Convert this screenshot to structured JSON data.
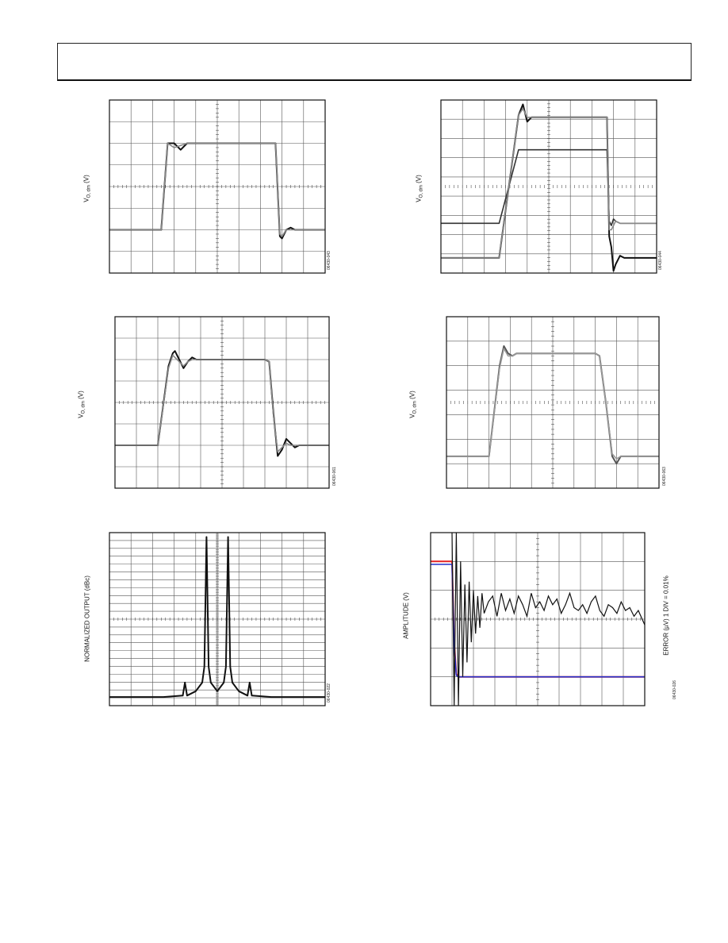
{
  "page": {
    "background": "#ffffff",
    "header_text": ""
  },
  "chart_data": [
    {
      "id": "c1",
      "type": "line",
      "ylabel": "V",
      "ylabel_sub": "O, dm",
      "ylabel_suffix": "(V)",
      "figure_code": "06430-043",
      "grid": true,
      "gridlines": {
        "x": 10,
        "y": 8
      },
      "x": [
        0,
        0.15,
        0.2,
        0.24,
        0.27,
        0.3,
        0.33,
        0.36,
        0.4,
        0.5,
        0.6,
        0.7,
        0.73,
        0.77,
        0.79,
        0.8,
        0.82,
        0.84,
        0.86,
        0.88,
        0.9,
        1.0
      ],
      "ylim": [
        -4,
        4
      ],
      "series": [
        {
          "color": "#111111",
          "values": [
            -2,
            -2,
            -2,
            -2,
            2,
            2,
            1.7,
            2,
            2,
            2,
            2,
            2,
            2,
            2,
            -2.3,
            -2.4,
            -2,
            -1.9,
            -2,
            -2,
            -2,
            -2
          ]
        },
        {
          "color": "#888888",
          "values": [
            -2,
            -2,
            -2,
            -2,
            2,
            1.8,
            1.9,
            2,
            2,
            2,
            2,
            2,
            2,
            2,
            -2.2,
            -2.3,
            -2,
            -2,
            -2,
            -2,
            -2,
            -2
          ]
        }
      ]
    },
    {
      "id": "c2",
      "type": "line",
      "ylabel": "V",
      "ylabel_sub": "O, dm",
      "ylabel_suffix": "(V)",
      "figure_code": "06430-044",
      "grid": true,
      "gridlines": {
        "x": 10,
        "y": 9
      },
      "x": [
        0,
        0.27,
        0.36,
        0.38,
        0.4,
        0.42,
        0.5,
        0.6,
        0.7,
        0.77,
        0.78,
        0.79,
        0.8,
        0.81,
        0.83,
        0.85,
        0.9,
        1.0
      ],
      "ylim": [
        -4,
        4
      ],
      "series": [
        {
          "color": "#111111",
          "values": [
            -3.3,
            -3.3,
            3.3,
            3.8,
            3.0,
            3.2,
            3.2,
            3.2,
            3.2,
            3.2,
            -2.3,
            -2.8,
            -3.9,
            -3.6,
            -3.2,
            -3.3,
            -3.3,
            -3.3
          ]
        },
        {
          "color": "#333333",
          "values": [
            -1.7,
            -1.7,
            1.7,
            1.7,
            1.7,
            1.7,
            1.7,
            1.7,
            1.7,
            1.7,
            -1.6,
            -1.8,
            -1.5,
            -1.6,
            -1.7,
            -1.7,
            -1.7,
            -1.7
          ]
        },
        {
          "color": "#888888",
          "values": [
            -3.3,
            -3.3,
            3.3,
            3.6,
            3.2,
            3.2,
            3.2,
            3.2,
            3.2,
            3.2,
            -2.0,
            -2.0,
            -1.8,
            -1.6,
            -1.7,
            -1.7,
            -1.7,
            -1.7
          ]
        }
      ]
    },
    {
      "id": "c3",
      "type": "line",
      "ylabel": "V",
      "ylabel_sub": "O, dm",
      "ylabel_suffix": "(V)",
      "figure_code": "06430-061",
      "grid": true,
      "gridlines": {
        "x": 10,
        "y": 8
      },
      "x": [
        0,
        0.2,
        0.25,
        0.27,
        0.28,
        0.3,
        0.32,
        0.34,
        0.36,
        0.38,
        0.4,
        0.5,
        0.6,
        0.7,
        0.72,
        0.74,
        0.76,
        0.78,
        0.8,
        0.82,
        0.84,
        0.86,
        0.88,
        0.9,
        1.0
      ],
      "ylim": [
        -4,
        4
      ],
      "series": [
        {
          "color": "#111111",
          "values": [
            -2,
            -2,
            1.7,
            2.3,
            2.4,
            2.0,
            1.6,
            1.9,
            2.1,
            2.0,
            2.0,
            2.0,
            2.0,
            2.0,
            1.9,
            -0.5,
            -2.5,
            -2.2,
            -1.7,
            -1.9,
            -2.1,
            -2.0,
            -2.0,
            -2.0,
            -2.0
          ]
        },
        {
          "color": "#888888",
          "values": [
            -2,
            -2,
            1.6,
            2.2,
            2.1,
            1.9,
            1.7,
            1.9,
            2.0,
            2.0,
            2.0,
            2.0,
            2.0,
            2.0,
            1.9,
            -0.6,
            -2.3,
            -2.1,
            -1.9,
            -2.0,
            -2.0,
            -2.0,
            -2.0,
            -2.0,
            -2.0
          ]
        }
      ]
    },
    {
      "id": "c4",
      "type": "line",
      "ylabel": "V",
      "ylabel_sub": "O, dm",
      "ylabel_suffix": "(V)",
      "figure_code": "06430-063",
      "grid": true,
      "gridlines": {
        "x": 10,
        "y": 7
      },
      "x": [
        0,
        0.2,
        0.25,
        0.27,
        0.29,
        0.31,
        0.33,
        0.35,
        0.4,
        0.5,
        0.6,
        0.7,
        0.72,
        0.75,
        0.78,
        0.8,
        0.82,
        0.84,
        0.86,
        0.9,
        1.0
      ],
      "ylim": [
        -3.5,
        3.5
      ],
      "series": [
        {
          "color": "#555555",
          "values": [
            -2.2,
            -2.2,
            1.5,
            2.3,
            2.0,
            1.9,
            2.0,
            2.0,
            2.0,
            2.0,
            2.0,
            2.0,
            1.9,
            0.0,
            -2.2,
            -2.5,
            -2.2,
            -2.2,
            -2.2,
            -2.2,
            -2.2
          ]
        },
        {
          "color": "#999999",
          "values": [
            -2.2,
            -2.2,
            1.4,
            2.2,
            1.9,
            1.9,
            2.0,
            2.0,
            2.0,
            2.0,
            2.0,
            2.0,
            1.9,
            0.0,
            -2.1,
            -2.3,
            -2.2,
            -2.2,
            -2.2,
            -2.2,
            -2.2
          ]
        }
      ]
    },
    {
      "id": "c5",
      "type": "line",
      "ylabel": "NORMALIZED OUTPUT (dBc)",
      "ylabel_sub": "",
      "ylabel_suffix": "",
      "figure_code": "06430-022",
      "grid": true,
      "gridlines": {
        "x": 10,
        "y": 22
      },
      "x": [
        0,
        0.25,
        0.34,
        0.35,
        0.36,
        0.4,
        0.43,
        0.44,
        0.45,
        0.46,
        0.47,
        0.5,
        0.53,
        0.54,
        0.55,
        0.56,
        0.57,
        0.6,
        0.64,
        0.65,
        0.66,
        0.75,
        1.0
      ],
      "ylim": [
        -120,
        0
      ],
      "series": [
        {
          "color": "#111111",
          "values": [
            -114,
            -114,
            -113,
            -104,
            -113,
            -110,
            -104,
            -93,
            -3,
            -93,
            -104,
            -110,
            -104,
            -93,
            -3,
            -93,
            -104,
            -110,
            -113,
            -104,
            -113,
            -114,
            -114
          ]
        }
      ]
    },
    {
      "id": "c6",
      "type": "line",
      "ylabel": "AMPLITUDE (V)",
      "ylabel_sub": "",
      "ylabel_suffix": "",
      "y2label": "ERROR (µV) 1 DIV = 0.01%",
      "figure_code": "06430-026",
      "grid": true,
      "gridlines": {
        "x": 10,
        "y": 6
      },
      "x": [
        0,
        0.1,
        0.11,
        0.12,
        0.13,
        0.2,
        0.5,
        1.0
      ],
      "ylim": [
        -3,
        3
      ],
      "series": [
        {
          "color": "#e52222",
          "values": [
            2,
            2,
            -0.8,
            -1.9,
            -2,
            -2,
            -2,
            -2
          ]
        },
        {
          "color": "#2233cc",
          "values": [
            1.9,
            1.9,
            -0.9,
            -1.95,
            -2,
            -2,
            -2,
            -2
          ]
        }
      ],
      "error_series": {
        "color": "#111111",
        "x": [
          0.1,
          0.11,
          0.12,
          0.13,
          0.14,
          0.15,
          0.16,
          0.17,
          0.18,
          0.19,
          0.2,
          0.21,
          0.22,
          0.23,
          0.24,
          0.25,
          0.27,
          0.29,
          0.31,
          0.33,
          0.35,
          0.37,
          0.39,
          0.41,
          0.43,
          0.45,
          0.47,
          0.49,
          0.51,
          0.53,
          0.55,
          0.57,
          0.59,
          0.61,
          0.63,
          0.65,
          0.67,
          0.69,
          0.71,
          0.73,
          0.75,
          0.77,
          0.79,
          0.81,
          0.83,
          0.85,
          0.87,
          0.89,
          0.91,
          0.93,
          0.95,
          0.97,
          1.0
        ],
        "values": [
          3,
          -3,
          3,
          -3,
          2,
          -2,
          1.2,
          -1.5,
          1.3,
          -0.8,
          1.0,
          -0.5,
          0.8,
          -0.3,
          0.9,
          0.2,
          0.6,
          0.8,
          0.1,
          0.9,
          0.3,
          0.7,
          0.2,
          0.8,
          0.5,
          0.1,
          0.9,
          0.4,
          0.6,
          0.3,
          0.8,
          0.5,
          0.7,
          0.2,
          0.5,
          0.9,
          0.4,
          0.3,
          0.5,
          0.2,
          0.6,
          0.8,
          0.3,
          0.1,
          0.5,
          0.4,
          0.2,
          0.6,
          0.3,
          0.4,
          0.1,
          0.3,
          -0.2
        ]
      }
    }
  ]
}
